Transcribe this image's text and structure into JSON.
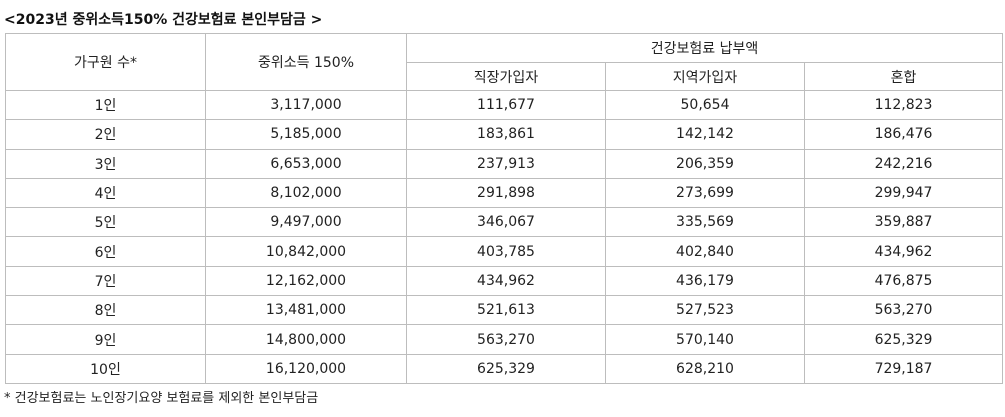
{
  "caption": "<2023년 중위소득150% 건강보험료 본인부담금 >",
  "headers": {
    "household": "가구원 수*",
    "income": "중위소득 150%",
    "premium_group": "건강보험료 납부액",
    "employee": "직장가입자",
    "regional": "지역가입자",
    "mixed": "혼합"
  },
  "rows": [
    {
      "household": "1인",
      "income": "3,117,000",
      "employee": "111,677",
      "regional": "50,654",
      "mixed": "112,823"
    },
    {
      "household": "2인",
      "income": "5,185,000",
      "employee": "183,861",
      "regional": "142,142",
      "mixed": "186,476"
    },
    {
      "household": "3인",
      "income": "6,653,000",
      "employee": "237,913",
      "regional": "206,359",
      "mixed": "242,216"
    },
    {
      "household": "4인",
      "income": "8,102,000",
      "employee": "291,898",
      "regional": "273,699",
      "mixed": "299,947"
    },
    {
      "household": "5인",
      "income": "9,497,000",
      "employee": "346,067",
      "regional": "335,569",
      "mixed": "359,887"
    },
    {
      "household": "6인",
      "income": "10,842,000",
      "employee": "403,785",
      "regional": "402,840",
      "mixed": "434,962"
    },
    {
      "household": "7인",
      "income": "12,162,000",
      "employee": "434,962",
      "regional": "436,179",
      "mixed": "476,875"
    },
    {
      "household": "8인",
      "income": "13,481,000",
      "employee": "521,613",
      "regional": "527,523",
      "mixed": "563,270"
    },
    {
      "household": "9인",
      "income": "14,800,000",
      "employee": "563,270",
      "regional": "570,140",
      "mixed": "625,329"
    },
    {
      "household": "10인",
      "income": "16,120,000",
      "employee": "625,329",
      "regional": "628,210",
      "mixed": "729,187"
    }
  ],
  "footnote": "* 건강보험료는 노인장기요양 보험료를 제외한 본인부담금"
}
